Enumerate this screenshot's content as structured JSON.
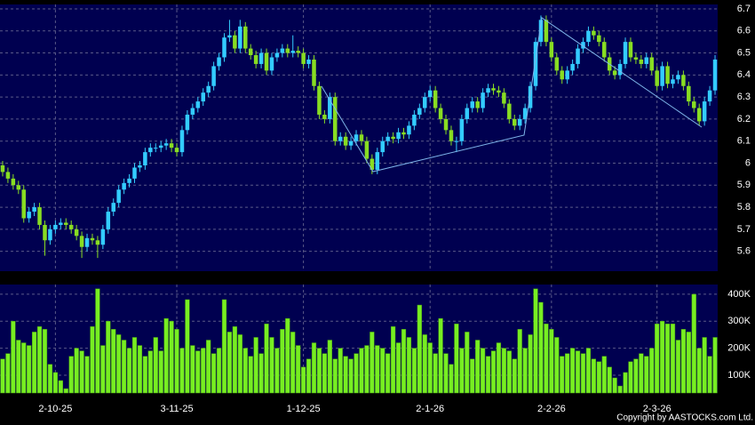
{
  "chart_data": [
    {
      "type": "candlestick",
      "categories": [
        null,
        null,
        null,
        null,
        null,
        null,
        null,
        null,
        null,
        null,
        "2-10-25",
        null,
        null,
        null,
        null,
        null,
        null,
        null,
        null,
        null,
        null,
        null,
        null,
        null,
        null,
        null,
        null,
        null,
        null,
        null,
        null,
        null,
        null,
        "3-11-25",
        null,
        null,
        null,
        null,
        null,
        null,
        null,
        null,
        null,
        null,
        null,
        null,
        null,
        null,
        null,
        null,
        null,
        null,
        null,
        null,
        null,
        null,
        null,
        "1-12-25",
        null,
        null,
        null,
        null,
        null,
        null,
        null,
        null,
        null,
        null,
        null,
        null,
        null,
        null,
        null,
        null,
        null,
        null,
        null,
        null,
        null,
        null,
        null,
        "2-1-26",
        null,
        null,
        null,
        null,
        null,
        null,
        null,
        null,
        null,
        null,
        null,
        null,
        null,
        null,
        null,
        null,
        null,
        null,
        null,
        null,
        null,
        null,
        "2-2-26",
        null,
        null,
        null,
        null,
        null,
        null,
        null,
        null,
        null,
        null,
        null,
        null,
        null,
        null,
        null,
        null,
        null,
        null,
        null,
        "2-3-26",
        null,
        null,
        null,
        null,
        null,
        null,
        null,
        null,
        null,
        null,
        null
      ],
      "open": [
        5.99,
        5.96,
        5.93,
        5.9,
        5.88,
        5.75,
        5.78,
        5.8,
        5.72,
        5.65,
        5.7,
        5.72,
        5.73,
        5.72,
        5.7,
        5.67,
        5.62,
        5.66,
        5.65,
        5.63,
        5.7,
        5.78,
        5.82,
        5.88,
        5.91,
        5.93,
        5.98,
        5.99,
        6.05,
        6.07,
        6.07,
        6.08,
        6.09,
        6.07,
        6.05,
        6.15,
        6.22,
        6.25,
        6.28,
        6.32,
        6.35,
        6.44,
        6.48,
        6.57,
        6.58,
        6.52,
        6.62,
        6.52,
        6.49,
        6.45,
        6.5,
        6.42,
        6.48,
        6.5,
        6.52,
        6.5,
        6.51,
        6.5,
        6.45,
        6.47,
        6.35,
        6.22,
        6.2,
        6.3,
        6.1,
        6.12,
        6.08,
        6.1,
        6.13,
        6.1,
        6.02,
        5.97,
        6.05,
        6.1,
        6.12,
        6.11,
        6.14,
        6.13,
        6.17,
        6.22,
        6.25,
        6.3,
        6.33,
        6.25,
        6.2,
        6.15,
        6.1,
        6.1,
        6.2,
        6.25,
        6.28,
        6.25,
        6.32,
        6.34,
        6.33,
        6.32,
        6.27,
        6.2,
        6.17,
        6.2,
        6.25,
        6.35,
        6.55,
        6.65,
        6.55,
        6.48,
        6.42,
        6.38,
        6.42,
        6.45,
        6.52,
        6.55,
        6.6,
        6.58,
        6.55,
        6.48,
        6.42,
        6.4,
        6.45,
        6.55,
        6.48,
        6.47,
        6.45,
        6.48,
        6.42,
        6.35,
        6.44,
        6.36,
        6.38,
        6.4,
        6.35,
        6.28,
        6.25,
        6.19,
        6.28,
        6.33
      ],
      "high": [
        6.01,
        5.98,
        5.95,
        5.92,
        5.9,
        5.8,
        5.82,
        5.82,
        5.74,
        5.72,
        5.74,
        5.75,
        5.75,
        5.74,
        5.72,
        5.69,
        5.68,
        5.68,
        5.67,
        5.72,
        5.8,
        5.84,
        5.9,
        5.93,
        5.95,
        6.0,
        6.01,
        6.07,
        6.09,
        6.09,
        6.1,
        6.11,
        6.11,
        6.09,
        6.17,
        6.24,
        6.27,
        6.3,
        6.34,
        6.37,
        6.46,
        6.5,
        6.59,
        6.65,
        6.6,
        6.65,
        6.64,
        6.54,
        6.51,
        6.52,
        6.52,
        6.5,
        6.52,
        6.54,
        6.54,
        6.58,
        6.53,
        6.52,
        6.49,
        6.49,
        6.37,
        6.24,
        6.32,
        6.32,
        6.14,
        6.14,
        6.12,
        6.15,
        6.15,
        6.12,
        6.04,
        6.07,
        6.12,
        6.14,
        6.14,
        6.16,
        6.16,
        6.19,
        6.24,
        6.27,
        6.32,
        6.35,
        6.35,
        6.27,
        6.22,
        6.17,
        6.12,
        6.22,
        6.27,
        6.3,
        6.3,
        6.34,
        6.36,
        6.36,
        6.35,
        6.34,
        6.29,
        6.22,
        6.22,
        6.27,
        6.37,
        6.57,
        6.67,
        6.67,
        6.57,
        6.5,
        6.44,
        6.44,
        6.47,
        6.54,
        6.57,
        6.62,
        6.62,
        6.6,
        6.57,
        6.5,
        6.44,
        6.47,
        6.57,
        6.57,
        6.5,
        6.49,
        6.5,
        6.5,
        6.44,
        6.46,
        6.46,
        6.4,
        6.42,
        6.42,
        6.37,
        6.3,
        6.27,
        6.3,
        6.35,
        6.49
      ],
      "low": [
        5.94,
        5.91,
        5.88,
        5.86,
        5.73,
        5.73,
        5.76,
        5.7,
        5.58,
        5.63,
        5.68,
        5.7,
        5.7,
        5.68,
        5.65,
        5.57,
        5.6,
        5.63,
        5.57,
        5.61,
        5.68,
        5.76,
        5.8,
        5.86,
        5.89,
        5.91,
        5.96,
        5.97,
        6.03,
        6.05,
        6.05,
        6.06,
        6.05,
        6.03,
        6.03,
        6.13,
        6.2,
        6.23,
        6.26,
        6.3,
        6.33,
        6.42,
        6.46,
        6.55,
        6.5,
        6.5,
        6.5,
        6.47,
        6.43,
        6.43,
        6.4,
        6.4,
        6.46,
        6.48,
        6.48,
        6.48,
        6.48,
        6.43,
        6.43,
        6.33,
        6.2,
        6.18,
        6.18,
        6.08,
        6.08,
        6.06,
        6.06,
        6.08,
        6.08,
        6.0,
        5.95,
        5.95,
        6.03,
        6.08,
        6.09,
        6.09,
        6.11,
        6.11,
        6.15,
        6.2,
        6.23,
        6.28,
        6.23,
        6.18,
        6.13,
        6.08,
        6.05,
        6.08,
        6.18,
        6.23,
        6.23,
        6.23,
        6.3,
        6.31,
        6.3,
        6.25,
        6.18,
        6.15,
        6.15,
        6.18,
        6.23,
        6.33,
        6.53,
        6.53,
        6.46,
        6.4,
        6.36,
        6.36,
        6.4,
        6.43,
        6.5,
        6.53,
        6.56,
        6.53,
        6.46,
        6.4,
        6.38,
        6.38,
        6.43,
        6.46,
        6.45,
        6.43,
        6.43,
        6.4,
        6.33,
        6.33,
        6.34,
        6.34,
        6.36,
        6.33,
        6.26,
        6.23,
        6.17,
        6.17,
        6.26,
        6.31
      ],
      "close": [
        5.96,
        5.93,
        5.9,
        5.88,
        5.75,
        5.78,
        5.8,
        5.72,
        5.65,
        5.7,
        5.72,
        5.73,
        5.72,
        5.7,
        5.67,
        5.62,
        5.66,
        5.65,
        5.63,
        5.7,
        5.78,
        5.82,
        5.88,
        5.91,
        5.93,
        5.98,
        5.99,
        6.05,
        6.07,
        6.07,
        6.08,
        6.09,
        6.07,
        6.05,
        6.15,
        6.22,
        6.25,
        6.28,
        6.32,
        6.35,
        6.44,
        6.48,
        6.57,
        6.58,
        6.52,
        6.62,
        6.52,
        6.49,
        6.45,
        6.5,
        6.42,
        6.48,
        6.5,
        6.52,
        6.5,
        6.51,
        6.5,
        6.45,
        6.47,
        6.35,
        6.22,
        6.2,
        6.3,
        6.1,
        6.12,
        6.08,
        6.1,
        6.13,
        6.1,
        6.02,
        5.97,
        6.05,
        6.1,
        6.12,
        6.11,
        6.14,
        6.13,
        6.17,
        6.22,
        6.25,
        6.3,
        6.33,
        6.25,
        6.2,
        6.15,
        6.1,
        6.1,
        6.2,
        6.25,
        6.28,
        6.25,
        6.32,
        6.34,
        6.33,
        6.32,
        6.27,
        6.2,
        6.17,
        6.2,
        6.25,
        6.35,
        6.55,
        6.65,
        6.55,
        6.48,
        6.42,
        6.38,
        6.42,
        6.45,
        6.52,
        6.55,
        6.6,
        6.58,
        6.55,
        6.48,
        6.42,
        6.4,
        6.45,
        6.55,
        6.48,
        6.47,
        6.45,
        6.48,
        6.42,
        6.35,
        6.44,
        6.36,
        6.38,
        6.4,
        6.35,
        6.28,
        6.25,
        6.19,
        6.28,
        6.33,
        6.47
      ],
      "up_color": "#33ccff",
      "down_color": "#88dd22",
      "ylim": [
        5.51,
        6.72
      ],
      "yticks": [
        5.6,
        5.7,
        5.8,
        5.9,
        6,
        6.1,
        6.2,
        6.3,
        6.4,
        6.5,
        6.6,
        6.7
      ],
      "grid": true
    },
    {
      "type": "bar",
      "values": [
        160000,
        180000,
        300000,
        230000,
        220000,
        210000,
        260000,
        280000,
        270000,
        140000,
        110000,
        80000,
        50000,
        170000,
        200000,
        190000,
        170000,
        280000,
        420000,
        210000,
        300000,
        270000,
        250000,
        230000,
        200000,
        240000,
        210000,
        170000,
        190000,
        240000,
        190000,
        310000,
        300000,
        270000,
        200000,
        380000,
        210000,
        190000,
        200000,
        230000,
        180000,
        200000,
        380000,
        260000,
        280000,
        250000,
        200000,
        170000,
        240000,
        180000,
        290000,
        240000,
        200000,
        270000,
        310000,
        260000,
        210000,
        130000,
        160000,
        220000,
        200000,
        180000,
        230000,
        160000,
        200000,
        170000,
        160000,
        180000,
        200000,
        210000,
        260000,
        210000,
        200000,
        180000,
        280000,
        220000,
        270000,
        240000,
        200000,
        360000,
        250000,
        220000,
        180000,
        310000,
        180000,
        140000,
        290000,
        200000,
        260000,
        160000,
        230000,
        200000,
        170000,
        190000,
        220000,
        200000,
        190000,
        160000,
        270000,
        200000,
        250000,
        420000,
        370000,
        290000,
        270000,
        240000,
        170000,
        180000,
        200000,
        190000,
        180000,
        200000,
        160000,
        150000,
        170000,
        130000,
        90000,
        60000,
        110000,
        150000,
        160000,
        180000,
        170000,
        200000,
        290000,
        300000,
        290000,
        290000,
        230000,
        270000,
        260000,
        400000,
        200000,
        240000,
        170000,
        240000
      ],
      "color": "#77ee22",
      "ylim": [
        34000,
        436000
      ],
      "yticks": [
        {
          "value": 100000,
          "label": "100K"
        },
        {
          "value": 200000,
          "label": "200K"
        },
        {
          "value": 300000,
          "label": "300K"
        },
        {
          "value": 400000,
          "label": "400K"
        }
      ],
      "grid": true
    }
  ],
  "copyright": "Copyright by AASTOCKS.com Ltd."
}
